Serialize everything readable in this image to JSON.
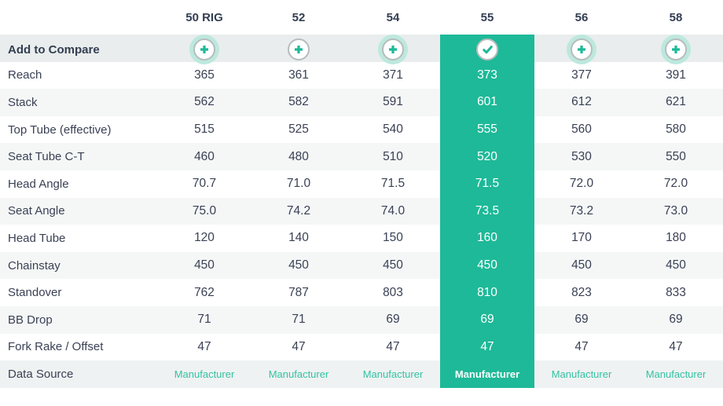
{
  "colors": {
    "accent_teal": "#1eb998",
    "halo_teal": "#bde8de",
    "link_teal": "#33c2a3",
    "compare_row_bg": "#e9eded",
    "stripe_bg": "#f5f7f7",
    "data_source_bg": "#eff2f2",
    "text_dark": "#3a4154",
    "circle_border": "#b7bcbc"
  },
  "table": {
    "compare_row_label": "Add to Compare",
    "selected_column_index": 3,
    "columns": [
      {
        "label": "50 RIG",
        "compare_state": "add",
        "halo": true
      },
      {
        "label": "52",
        "compare_state": "add",
        "halo": false
      },
      {
        "label": "54",
        "compare_state": "add",
        "halo": true
      },
      {
        "label": "55",
        "compare_state": "selected",
        "halo": false
      },
      {
        "label": "56",
        "compare_state": "add",
        "halo": true
      },
      {
        "label": "58",
        "compare_state": "add",
        "halo": true
      }
    ],
    "rows": [
      {
        "label": "Reach",
        "values": [
          "365",
          "361",
          "371",
          "373",
          "377",
          "391"
        ]
      },
      {
        "label": "Stack",
        "values": [
          "562",
          "582",
          "591",
          "601",
          "612",
          "621"
        ]
      },
      {
        "label": "Top Tube (effective)",
        "values": [
          "515",
          "525",
          "540",
          "555",
          "560",
          "580"
        ]
      },
      {
        "label": "Seat Tube C-T",
        "values": [
          "460",
          "480",
          "510",
          "520",
          "530",
          "550"
        ]
      },
      {
        "label": "Head Angle",
        "values": [
          "70.7",
          "71.0",
          "71.5",
          "71.5",
          "72.0",
          "72.0"
        ]
      },
      {
        "label": "Seat Angle",
        "values": [
          "75.0",
          "74.2",
          "74.0",
          "73.5",
          "73.2",
          "73.0"
        ]
      },
      {
        "label": "Head Tube",
        "values": [
          "120",
          "140",
          "150",
          "160",
          "170",
          "180"
        ]
      },
      {
        "label": "Chainstay",
        "values": [
          "450",
          "450",
          "450",
          "450",
          "450",
          "450"
        ]
      },
      {
        "label": "Standover",
        "values": [
          "762",
          "787",
          "803",
          "810",
          "823",
          "833"
        ]
      },
      {
        "label": "BB Drop",
        "values": [
          "71",
          "71",
          "69",
          "69",
          "69",
          "69"
        ]
      },
      {
        "label": "Fork Rake / Offset",
        "values": [
          "47",
          "47",
          "47",
          "47",
          "47",
          "47"
        ]
      }
    ],
    "data_source_row": {
      "label": "Data Source",
      "values": [
        "Manufacturer",
        "Manufacturer",
        "Manufacturer",
        "Manufacturer",
        "Manufacturer",
        "Manufacturer"
      ]
    }
  },
  "icons": {
    "add": "plus-icon",
    "selected": "check-icon"
  }
}
